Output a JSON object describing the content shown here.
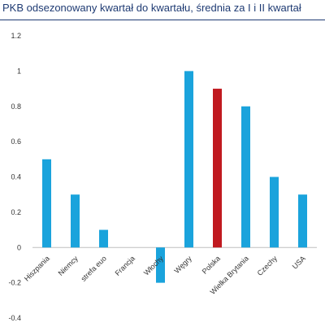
{
  "header": {
    "title": "PKB odsezonowany kwartał do kwartału, średnia za I i II kwartał"
  },
  "chart_data": {
    "type": "bar",
    "title": "PKB odsezonowany kwartał do kwartału, średnia za I i II kwartał",
    "xlabel": "",
    "ylabel": "",
    "categories": [
      "Hiszpania",
      "Niemcy",
      "strefa euo",
      "Francja",
      "Włochy",
      "Węgry",
      "Polska",
      "Wielka Brytania",
      "Czechy",
      "USA"
    ],
    "values": [
      0.5,
      0.3,
      0.1,
      0,
      -0.2,
      1.0,
      0.9,
      0.8,
      0.4,
      0.3
    ],
    "bar_colors": [
      "#1aa3dc",
      "#1aa3dc",
      "#1aa3dc",
      "#1aa3dc",
      "#1aa3dc",
      "#1aa3dc",
      "#c0191f",
      "#1aa3dc",
      "#1aa3dc",
      "#1aa3dc"
    ],
    "ylim": [
      -0.4,
      1.2
    ],
    "yticks": [
      -0.4,
      -0.2,
      0,
      0.2,
      0.4,
      0.6,
      0.8,
      1,
      1.2
    ],
    "ytick_labels": [
      "-0.4",
      "-0.2",
      "0",
      "0.2",
      "0.4",
      "0.6",
      "0.8",
      "1",
      "1.2"
    ],
    "grid": false,
    "legend": "none"
  }
}
